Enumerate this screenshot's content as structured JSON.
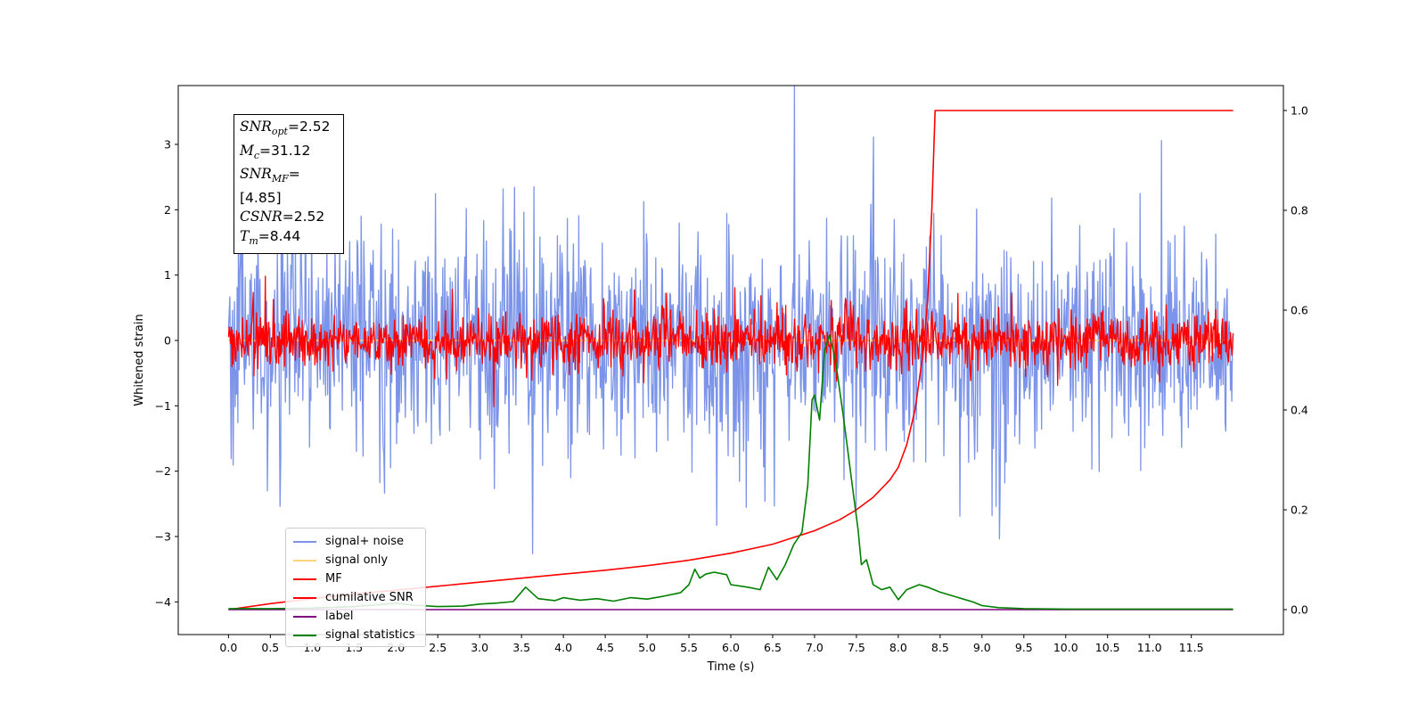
{
  "chart_data": {
    "type": "line",
    "xlabel": "Time (s)",
    "ylabel": "Whitened strain",
    "xlim": [
      -0.6,
      12.6
    ],
    "ylim_left": [
      -4.5,
      3.9
    ],
    "ylim_right": [
      -0.05,
      1.05
    ],
    "xticks": [
      "0.0",
      "0.5",
      "1.0",
      "1.5",
      "2.0",
      "2.5",
      "3.0",
      "3.5",
      "4.0",
      "4.5",
      "5.0",
      "5.5",
      "6.0",
      "6.5",
      "7.0",
      "7.5",
      "8.0",
      "8.5",
      "9.0",
      "9.5",
      "10.0",
      "10.5",
      "11.0",
      "11.5"
    ],
    "yticks_left": [
      -4,
      -3,
      -2,
      -1,
      0,
      1,
      2,
      3
    ],
    "yticks_right": [
      "0.0",
      "0.2",
      "0.4",
      "0.6",
      "0.8",
      "1.0"
    ],
    "grid": false,
    "legend_placement": "lower-left",
    "series": [
      {
        "name": "signal+ noise",
        "color": "#7b93e8",
        "axis": "left",
        "style": "noise",
        "x_range": [
          0.0,
          12.0
        ],
        "center": 0.0,
        "spread": 0.85
      },
      {
        "name": "signal only",
        "color": "#ffd27f",
        "axis": "left",
        "style": "flat",
        "x": [
          0.0,
          12.0
        ],
        "y": [
          0.0,
          0.0
        ]
      },
      {
        "name": "MF",
        "color": "#ff0000",
        "axis": "left",
        "style": "noise",
        "x_range": [
          0.0,
          12.0
        ],
        "center": 0.0,
        "spread": 0.22
      },
      {
        "name": "cumilative SNR",
        "color": "#ff0000",
        "axis": "right",
        "x": [
          0.0,
          0.5,
          1.0,
          1.5,
          2.0,
          2.5,
          3.0,
          3.5,
          4.0,
          4.5,
          5.0,
          5.5,
          6.0,
          6.5,
          7.0,
          7.3,
          7.5,
          7.7,
          7.9,
          8.0,
          8.1,
          8.2,
          8.3,
          8.35,
          8.4,
          8.44,
          9.0,
          10.0,
          11.0,
          12.0
        ],
        "y": [
          0.0,
          0.012,
          0.022,
          0.031,
          0.039,
          0.047,
          0.055,
          0.063,
          0.071,
          0.079,
          0.088,
          0.099,
          0.113,
          0.131,
          0.158,
          0.18,
          0.2,
          0.225,
          0.26,
          0.285,
          0.33,
          0.4,
          0.52,
          0.62,
          0.8,
          1.0,
          1.0,
          1.0,
          1.0,
          1.0
        ]
      },
      {
        "name": "label",
        "color": "#800080",
        "axis": "right",
        "x": [
          0.0,
          12.0
        ],
        "y": [
          0.0,
          0.0
        ]
      },
      {
        "name": "signal statistics",
        "color": "#008000",
        "axis": "right",
        "x": [
          0.0,
          0.5,
          1.0,
          1.5,
          1.8,
          2.0,
          2.2,
          2.5,
          2.8,
          3.0,
          3.2,
          3.4,
          3.55,
          3.7,
          3.9,
          4.0,
          4.2,
          4.4,
          4.6,
          4.8,
          5.0,
          5.2,
          5.4,
          5.5,
          5.57,
          5.63,
          5.7,
          5.8,
          5.95,
          6.0,
          6.2,
          6.35,
          6.45,
          6.55,
          6.65,
          6.75,
          6.85,
          6.92,
          6.97,
          7.0,
          7.06,
          7.12,
          7.18,
          7.25,
          7.35,
          7.45,
          7.52,
          7.56,
          7.62,
          7.7,
          7.8,
          7.9,
          8.0,
          8.1,
          8.25,
          8.35,
          8.5,
          8.7,
          8.8,
          8.9,
          9.0,
          9.2,
          9.5,
          10.0,
          11.0,
          12.0
        ],
        "y": [
          0.002,
          0.002,
          0.003,
          0.006,
          0.01,
          0.013,
          0.009,
          0.006,
          0.007,
          0.011,
          0.013,
          0.016,
          0.045,
          0.022,
          0.018,
          0.024,
          0.019,
          0.022,
          0.017,
          0.024,
          0.021,
          0.027,
          0.034,
          0.05,
          0.081,
          0.063,
          0.071,
          0.075,
          0.07,
          0.05,
          0.045,
          0.04,
          0.085,
          0.06,
          0.09,
          0.13,
          0.155,
          0.25,
          0.42,
          0.43,
          0.38,
          0.52,
          0.55,
          0.5,
          0.38,
          0.25,
          0.16,
          0.09,
          0.1,
          0.05,
          0.04,
          0.045,
          0.02,
          0.04,
          0.05,
          0.045,
          0.035,
          0.025,
          0.02,
          0.015,
          0.008,
          0.004,
          0.002,
          0.001,
          0.001,
          0.001
        ]
      }
    ],
    "annotation_box": {
      "snr_opt": "=2.52",
      "mc": "=31.12",
      "snr_mf": "=[4.85]",
      "csnr": "=2.52",
      "tm": "=8.44"
    }
  }
}
